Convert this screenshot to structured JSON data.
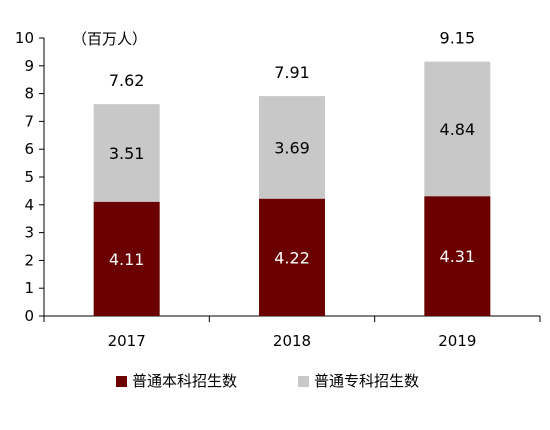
{
  "chart_data": {
    "type": "bar",
    "stacked": true,
    "unit_label": "（百万人）",
    "categories": [
      "2017",
      "2018",
      "2019"
    ],
    "series": [
      {
        "name": "普通本科招生数",
        "values": [
          4.11,
          4.22,
          4.31
        ],
        "color": "#6b0000",
        "label_color": "#ffffff"
      },
      {
        "name": "普通专科招生数",
        "values": [
          3.51,
          3.69,
          4.84
        ],
        "color": "#c8c8c8",
        "label_color": "#000000"
      }
    ],
    "totals": [
      7.62,
      7.91,
      9.15
    ],
    "ylim": [
      0,
      10
    ],
    "yticks": [
      "0",
      "1",
      "2",
      "3",
      "4",
      "5",
      "6",
      "7",
      "8",
      "9",
      "10"
    ],
    "legend_position": "bottom",
    "grid": false
  }
}
